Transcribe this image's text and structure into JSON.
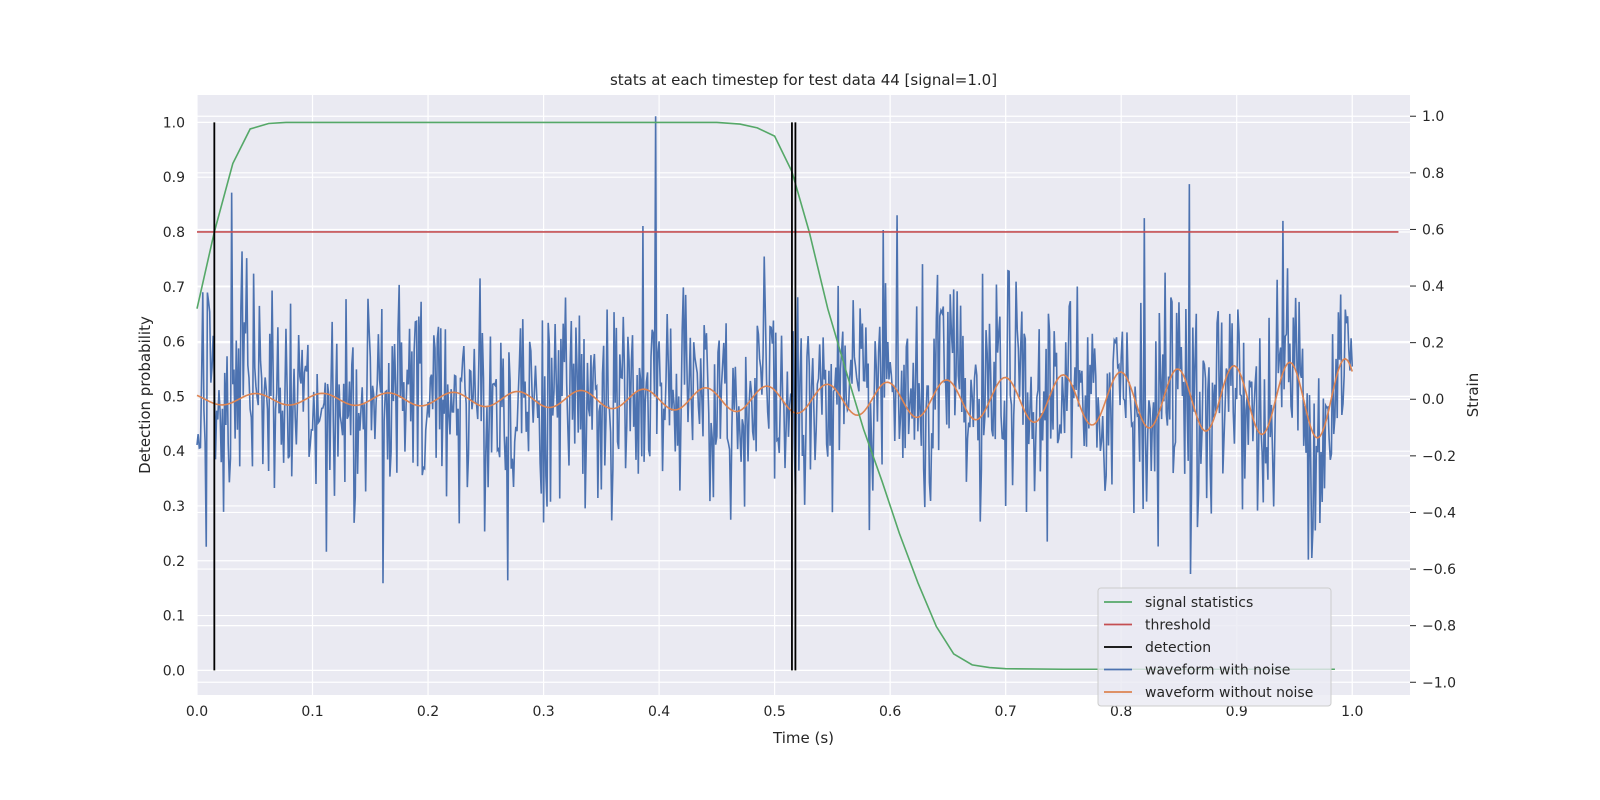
{
  "chart_data": {
    "type": "line",
    "title": "stats at each timestep for test data 44 [signal=1.0]",
    "xlabel": "Time (s)",
    "ylabel": "Detection probability",
    "ylabel_right": "Strain",
    "xlim": [
      0.0,
      1.05
    ],
    "ylim": [
      -0.045,
      1.05
    ],
    "ylim_right": [
      -1.045,
      1.075
    ],
    "xticks": [
      "0.0",
      "0.1",
      "0.2",
      "0.3",
      "0.4",
      "0.5",
      "0.6",
      "0.7",
      "0.8",
      "0.9",
      "1.0"
    ],
    "yticks": [
      "0.0",
      "0.1",
      "0.2",
      "0.3",
      "0.4",
      "0.5",
      "0.6",
      "0.7",
      "0.8",
      "0.9",
      "1.0"
    ],
    "yticks_right": [
      "−1.0",
      "−0.8",
      "−0.6",
      "−0.4",
      "−0.2",
      "0.0",
      "0.2",
      "0.4",
      "0.6",
      "0.8",
      "1.0"
    ],
    "grid": true,
    "legend_position": "lower-right",
    "colors": {
      "signal_statistics": "#55a868",
      "threshold": "#c44e52",
      "detection": "#000000",
      "waveform_with_noise": "#4c72b0",
      "waveform_without_noise": "#dd8452",
      "plot_background": "#eaeaf2",
      "grid": "#ffffff"
    },
    "series": [
      {
        "name": "signal statistics",
        "axis": "left",
        "x": [
          0.0,
          0.015,
          0.031,
          0.046,
          0.062,
          0.077,
          0.1,
          0.2,
          0.3,
          0.4,
          0.45,
          0.47,
          0.485,
          0.5,
          0.515,
          0.53,
          0.546,
          0.562,
          0.577,
          0.593,
          0.608,
          0.624,
          0.64,
          0.655,
          0.671,
          0.686,
          0.7,
          0.75,
          0.8,
          0.9,
          0.985
        ],
        "y": [
          0.66,
          0.8,
          0.925,
          0.988,
          0.998,
          1.0,
          1.0,
          1.0,
          1.0,
          1.0,
          1.0,
          0.997,
          0.99,
          0.975,
          0.91,
          0.8,
          0.66,
          0.545,
          0.44,
          0.345,
          0.25,
          0.16,
          0.08,
          0.03,
          0.01,
          0.005,
          0.003,
          0.002,
          0.002,
          0.002,
          0.002
        ]
      },
      {
        "name": "threshold",
        "axis": "left",
        "x": [
          0.0,
          1.04
        ],
        "y": [
          0.8,
          0.8
        ]
      },
      {
        "name": "detection",
        "axis": "left",
        "segments": [
          {
            "x": 0.015,
            "y": [
              0.0,
              1.0
            ]
          },
          {
            "x": 0.515,
            "y": [
              0.0,
              1.0
            ]
          },
          {
            "x": 0.518,
            "y": [
              0.0,
              1.0
            ]
          }
        ]
      },
      {
        "name": "waveform with noise",
        "axis": "right",
        "x_range": [
          0.0,
          1.0
        ],
        "points": 1000,
        "description_values": {
          "noise_std": 0.19,
          "min": -0.71,
          "max": 1.0,
          "spikes": [
            {
              "x": 0.03,
              "y": 0.73
            },
            {
              "x": 0.397,
              "y": 1.0
            },
            {
              "x": 0.161,
              "y": -0.65
            },
            {
              "x": 0.269,
              "y": -0.64
            },
            {
              "x": 0.606,
              "y": 0.65
            },
            {
              "x": 0.859,
              "y": 0.76
            },
            {
              "x": 0.82,
              "y": 0.64
            },
            {
              "x": 0.94,
              "y": 0.63
            }
          ]
        }
      },
      {
        "name": "waveform without noise",
        "axis": "right",
        "x_range": [
          0.0,
          1.0
        ],
        "points": 500,
        "description_values": {
          "amplitude_start": 0.02,
          "amplitude_end": 0.145,
          "cycles_per_second_start": 17,
          "cycles_per_second_end": 21
        }
      }
    ]
  }
}
